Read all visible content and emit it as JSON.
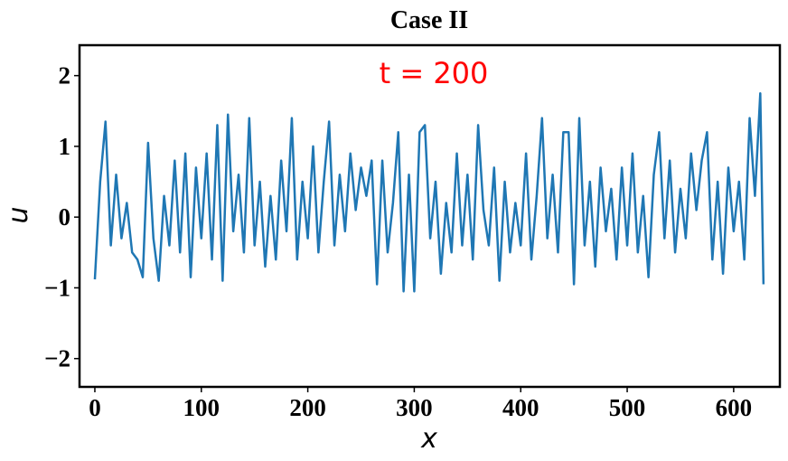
{
  "chart_data": {
    "type": "line",
    "title": "Case II",
    "xlabel": "x",
    "ylabel": "u",
    "annotation": "t = 200",
    "annotation_color": "#ff0000",
    "x": [
      0,
      5,
      10,
      15,
      20,
      25,
      30,
      35,
      40,
      45,
      50,
      55,
      60,
      65,
      70,
      75,
      80,
      85,
      90,
      95,
      100,
      105,
      110,
      115,
      120,
      125,
      130,
      135,
      140,
      145,
      150,
      155,
      160,
      165,
      170,
      175,
      180,
      185,
      190,
      195,
      200,
      205,
      210,
      215,
      220,
      225,
      230,
      235,
      240,
      245,
      250,
      255,
      260,
      265,
      270,
      275,
      280,
      285,
      290,
      295,
      300,
      305,
      310,
      315,
      320,
      325,
      330,
      335,
      340,
      345,
      350,
      355,
      360,
      365,
      370,
      375,
      380,
      385,
      390,
      395,
      400,
      405,
      410,
      415,
      420,
      425,
      430,
      435,
      440,
      445,
      450,
      455,
      460,
      465,
      470,
      475,
      480,
      485,
      490,
      495,
      500,
      505,
      510,
      515,
      520,
      525,
      530,
      535,
      540,
      545,
      550,
      555,
      560,
      565,
      570,
      575,
      580,
      585,
      590,
      595,
      600,
      605,
      610,
      615,
      620,
      625,
      628
    ],
    "series": [
      {
        "name": "u",
        "color": "#1f77b4",
        "values": [
          -0.88,
          0.5,
          1.35,
          -0.4,
          0.6,
          -0.3,
          0.2,
          -0.5,
          -0.6,
          -0.85,
          1.05,
          -0.3,
          -0.9,
          0.3,
          -0.4,
          0.8,
          -0.5,
          0.9,
          -0.85,
          0.7,
          -0.3,
          0.9,
          -0.6,
          1.3,
          -0.9,
          1.45,
          -0.2,
          0.6,
          -0.5,
          1.4,
          -0.4,
          0.5,
          -0.7,
          0.3,
          -0.6,
          0.8,
          -0.2,
          1.4,
          -0.6,
          0.5,
          -0.3,
          1.0,
          -0.5,
          0.5,
          1.35,
          -0.4,
          0.6,
          -0.2,
          0.9,
          0.1,
          0.7,
          0.3,
          0.8,
          -0.95,
          0.8,
          -0.5,
          0.2,
          1.2,
          -1.05,
          0.6,
          -1.05,
          1.2,
          1.3,
          -0.3,
          0.5,
          -0.8,
          0.2,
          -0.5,
          0.9,
          -0.4,
          0.6,
          -0.6,
          1.3,
          0.1,
          -0.4,
          0.7,
          -0.9,
          0.5,
          -0.5,
          0.2,
          -0.4,
          0.9,
          -0.6,
          0.3,
          1.4,
          -0.3,
          0.6,
          -0.5,
          1.2,
          1.2,
          -0.95,
          1.4,
          -0.4,
          0.5,
          -0.7,
          0.7,
          -0.2,
          0.4,
          -0.6,
          0.7,
          -0.4,
          0.9,
          -0.5,
          0.3,
          -0.85,
          0.6,
          1.2,
          -0.3,
          0.8,
          -0.5,
          0.4,
          -0.3,
          0.9,
          0.1,
          0.8,
          1.2,
          -0.6,
          0.5,
          -0.8,
          0.7,
          -0.2,
          0.5,
          -0.6,
          1.4,
          0.3,
          1.75,
          -0.95
        ]
      }
    ],
    "xlim": [
      -14.4,
      643.4
    ],
    "ylim": [
      -2.4,
      2.43
    ],
    "xticks": [
      0,
      100,
      200,
      300,
      400,
      500,
      600
    ],
    "yticks": [
      {
        "value": -2,
        "label": "−2"
      },
      {
        "value": -1,
        "label": "−1"
      },
      0,
      1,
      2
    ]
  }
}
